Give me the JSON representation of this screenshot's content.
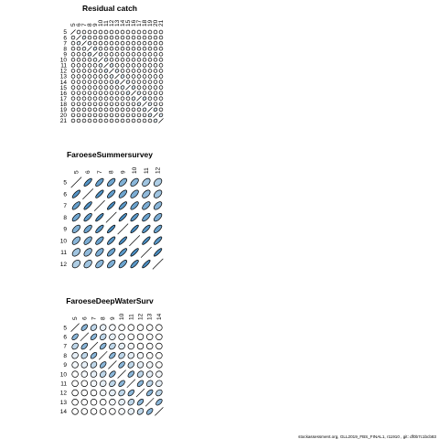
{
  "chart_data": [
    {
      "type": "heatmap",
      "title": "Residual catch",
      "labels": [
        "5",
        "6",
        "7",
        "8",
        "9",
        "10",
        "11",
        "12",
        "13",
        "14",
        "15",
        "16",
        "17",
        "18",
        "19",
        "20",
        "21"
      ],
      "correlations": [
        [
          1,
          0.05,
          0,
          0,
          0,
          0,
          0,
          0,
          0,
          0,
          0,
          0,
          0,
          0,
          0,
          0,
          0
        ],
        [
          0.05,
          1,
          0.15,
          0,
          0,
          0,
          0,
          0,
          0,
          0,
          0,
          0,
          0,
          0,
          0,
          0,
          0
        ],
        [
          0,
          0.15,
          1,
          0.1,
          0,
          0,
          0,
          0,
          0,
          0,
          0,
          0,
          0,
          0,
          0,
          0,
          0
        ],
        [
          0,
          0,
          0.1,
          1,
          0.2,
          0,
          0,
          0,
          0,
          0,
          0,
          0,
          0,
          0,
          0,
          0,
          0
        ],
        [
          0,
          0,
          0,
          0.2,
          1,
          0.1,
          0,
          0,
          0,
          0,
          0,
          0,
          0,
          0,
          0,
          0,
          0
        ],
        [
          0,
          0,
          0,
          0,
          0.1,
          1,
          0.15,
          0,
          0,
          0,
          0,
          0,
          0,
          0,
          0,
          0,
          0
        ],
        [
          0,
          0,
          0,
          0,
          0,
          0.15,
          1,
          0.2,
          0,
          0,
          0,
          0,
          0,
          0,
          0,
          0,
          0
        ],
        [
          0,
          0,
          0,
          0,
          0,
          0,
          0.2,
          1,
          0.15,
          0,
          0,
          0,
          0,
          0,
          0,
          0,
          0
        ],
        [
          0,
          0,
          0,
          0,
          0,
          0,
          0,
          0.15,
          1,
          0.2,
          0,
          0,
          0,
          0,
          0,
          0,
          0
        ],
        [
          0,
          0,
          0,
          0,
          0,
          0,
          0,
          0,
          0.2,
          1,
          0.15,
          0,
          0,
          0,
          0,
          0,
          0
        ],
        [
          0,
          0,
          0,
          0,
          0,
          0,
          0,
          0,
          0,
          0.15,
          1,
          0.2,
          0,
          0,
          0,
          0,
          0
        ],
        [
          0,
          0,
          0,
          0,
          0,
          0,
          0,
          0,
          0,
          0,
          0.2,
          1,
          0.15,
          0,
          0,
          0,
          0
        ],
        [
          0,
          0,
          0,
          0,
          0,
          0,
          0,
          0,
          0,
          0,
          0,
          0.15,
          1,
          0.2,
          0,
          0,
          0
        ],
        [
          0,
          0,
          0,
          0,
          0,
          0,
          0,
          0,
          0,
          0,
          0,
          0,
          0.2,
          1,
          0.15,
          0,
          0
        ],
        [
          0,
          0,
          0,
          0,
          0,
          0,
          0,
          0,
          0,
          0,
          0,
          0,
          0,
          0.15,
          1,
          0.2,
          0
        ],
        [
          0,
          0,
          0,
          0,
          0,
          0,
          0,
          0,
          0,
          0,
          0,
          0,
          0,
          0,
          0.2,
          1,
          0.15
        ],
        [
          0,
          0,
          0,
          0,
          0,
          0,
          0,
          0,
          0,
          0,
          0,
          0,
          0,
          0,
          0,
          0.15,
          1
        ]
      ]
    },
    {
      "type": "heatmap",
      "title": "FaroeseSummersurvey",
      "labels": [
        "5",
        "6",
        "7",
        "8",
        "9",
        "10",
        "11",
        "12"
      ],
      "correlations": [
        [
          1,
          0.8,
          0.72,
          0.68,
          0.6,
          0.55,
          0.45,
          0.38
        ],
        [
          0.8,
          1,
          0.82,
          0.75,
          0.68,
          0.62,
          0.52,
          0.45
        ],
        [
          0.72,
          0.82,
          1,
          0.85,
          0.78,
          0.7,
          0.62,
          0.55
        ],
        [
          0.68,
          0.75,
          0.85,
          1,
          0.85,
          0.78,
          0.7,
          0.62
        ],
        [
          0.6,
          0.68,
          0.78,
          0.85,
          1,
          0.85,
          0.78,
          0.7
        ],
        [
          0.55,
          0.62,
          0.7,
          0.78,
          0.85,
          1,
          0.85,
          0.78
        ],
        [
          0.45,
          0.52,
          0.62,
          0.7,
          0.78,
          0.85,
          1,
          0.85
        ],
        [
          0.38,
          0.45,
          0.55,
          0.62,
          0.7,
          0.78,
          0.85,
          1
        ]
      ]
    },
    {
      "type": "heatmap",
      "title": "FaroeseDeepWaterSurv",
      "labels": [
        "5",
        "6",
        "7",
        "8",
        "9",
        "10",
        "11",
        "12",
        "13",
        "14"
      ],
      "correlations": [
        [
          1,
          0.55,
          0.3,
          0.12,
          0.05,
          0,
          0,
          0,
          0,
          0
        ],
        [
          0.55,
          1,
          0.55,
          0.3,
          0.12,
          0.05,
          0,
          0,
          0,
          0
        ],
        [
          0.3,
          0.55,
          1,
          0.55,
          0.3,
          0.12,
          0.05,
          0,
          0,
          0
        ],
        [
          0.12,
          0.3,
          0.55,
          1,
          0.55,
          0.3,
          0.12,
          0.05,
          0,
          0
        ],
        [
          0.05,
          0.12,
          0.3,
          0.55,
          1,
          0.55,
          0.3,
          0.12,
          0.05,
          0
        ],
        [
          0,
          0.05,
          0.12,
          0.3,
          0.55,
          1,
          0.55,
          0.3,
          0.12,
          0.05
        ],
        [
          0,
          0,
          0.05,
          0.12,
          0.3,
          0.55,
          1,
          0.55,
          0.3,
          0.12
        ],
        [
          0,
          0,
          0,
          0.05,
          0.12,
          0.3,
          0.55,
          1,
          0.55,
          0.3
        ],
        [
          0,
          0,
          0,
          0,
          0.05,
          0.12,
          0.3,
          0.55,
          1,
          0.55
        ],
        [
          0,
          0,
          0,
          0,
          0,
          0.05,
          0.12,
          0.3,
          0.55,
          1
        ]
      ]
    }
  ],
  "colors": {
    "fill_low": "#ffffff",
    "fill_high": "#2b7bb9",
    "stroke": "#000000"
  },
  "footer": "stockassessment.org,  GLL2019_FBS_FINAL1,  r11910 ,  git:  df0b7c1bcb83"
}
